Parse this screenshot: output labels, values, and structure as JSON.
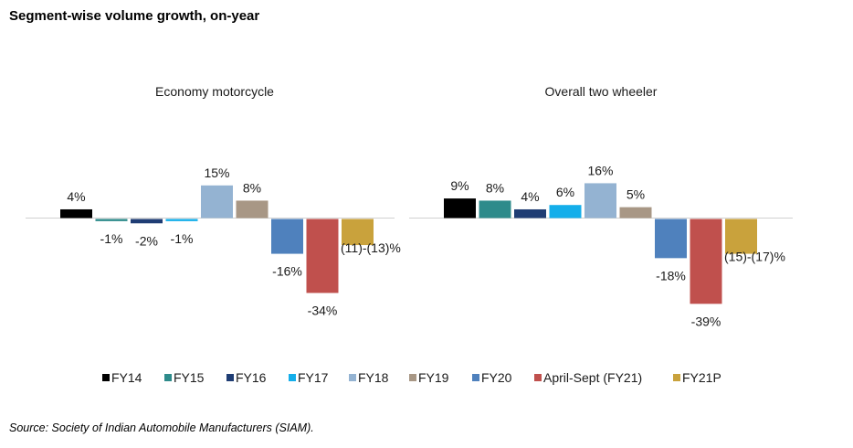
{
  "title": "Segment-wise volume growth, on-year",
  "source": "Source: Society of Indian Automobile Manufacturers (SIAM).",
  "chart_data": [
    {
      "type": "bar",
      "title": "Economy motorcycle",
      "unit": "%",
      "categories": [
        "FY14",
        "FY15",
        "FY16",
        "FY17",
        "FY18",
        "FY19",
        "FY20",
        "April-Sept (FY21)",
        "FY21P"
      ],
      "values": [
        4,
        -1,
        -2,
        -1,
        15,
        8,
        -16,
        -34,
        -12
      ],
      "data_labels": [
        "4%",
        "-1%",
        "-2%",
        "-1%",
        "15%",
        "8%",
        "-16%",
        "-34%",
        "(11)-(13)%"
      ]
    },
    {
      "type": "bar",
      "title": "Overall two wheeler",
      "unit": "%",
      "categories": [
        "FY14",
        "FY15",
        "FY16",
        "FY17",
        "FY18",
        "FY19",
        "FY20",
        "April-Sept (FY21)",
        "FY21P"
      ],
      "values": [
        9,
        8,
        4,
        6,
        16,
        5,
        -18,
        -39,
        -16
      ],
      "data_labels": [
        "9%",
        "8%",
        "4%",
        "6%",
        "16%",
        "5%",
        "-18%",
        "-39%",
        "(15)-(17)%"
      ]
    }
  ],
  "legend": {
    "position": "bottom",
    "items": [
      {
        "label": "FY14",
        "color": "#000000"
      },
      {
        "label": "FY15",
        "color": "#2e8b8b"
      },
      {
        "label": "FY16",
        "color": "#1f3d74"
      },
      {
        "label": "FY17",
        "color": "#14aeea"
      },
      {
        "label": "FY18",
        "color": "#94b3d2"
      },
      {
        "label": "FY19",
        "color": "#a89785"
      },
      {
        "label": "FY20",
        "color": "#4f81bd"
      },
      {
        "label": "April-Sept (FY21)",
        "color": "#c0504d"
      },
      {
        "label": "FY21P",
        "color": "#c9a23c"
      }
    ]
  }
}
